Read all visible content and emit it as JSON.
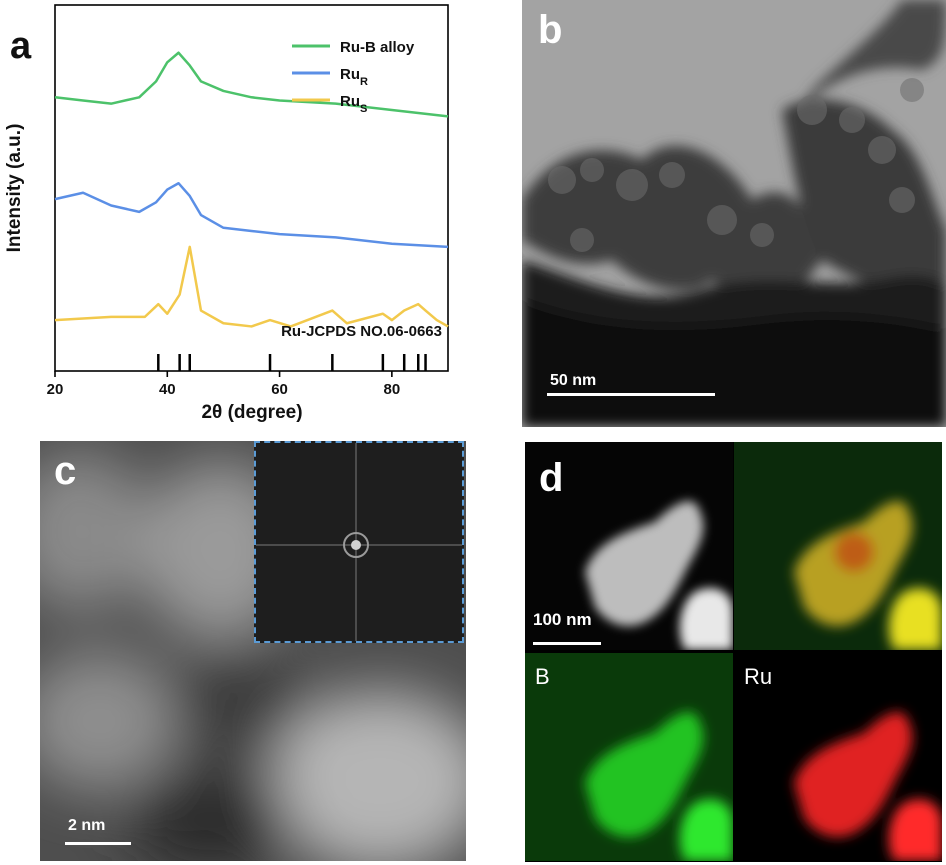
{
  "figure": {
    "panel_a": {
      "label": "a",
      "chart_data": {
        "type": "line",
        "xlabel": "2θ (degree)",
        "ylabel": "Intensity (a.u.)",
        "xlim": [
          20,
          90
        ],
        "xticks": [
          20,
          40,
          60,
          80
        ],
        "yticks_shown": false,
        "legend_position": "top-right",
        "series": [
          {
            "name": "Ru-B alloy",
            "color": "#4cc26a",
            "x": [
              20,
              25,
              30,
              35,
              38,
              40,
              42,
              44,
              46,
              50,
              55,
              60,
              70,
              80,
              90
            ],
            "y": [
              8.6,
              8.5,
              8.4,
              8.6,
              9.1,
              9.7,
              10.0,
              9.6,
              9.1,
              8.8,
              8.6,
              8.5,
              8.4,
              8.2,
              8.0
            ]
          },
          {
            "name": "Ru_R",
            "color": "#5b8fe6",
            "x": [
              20,
              25,
              30,
              35,
              38,
              40,
              42,
              44,
              46,
              50,
              55,
              60,
              70,
              80,
              90
            ],
            "y": [
              5.4,
              5.6,
              5.2,
              5.0,
              5.3,
              5.7,
              5.9,
              5.5,
              4.9,
              4.5,
              4.4,
              4.3,
              4.2,
              4.0,
              3.9
            ]
          },
          {
            "name": "Ru_S",
            "color": "#f2c94c",
            "x": [
              20,
              30,
              36,
              38.4,
              40,
              42.2,
              44.0,
              46,
              50,
              55,
              58.3,
              62,
              69.4,
              72,
              78.4,
              80,
              82.2,
              84.7,
              86,
              88,
              90
            ],
            "y": [
              1.6,
              1.7,
              1.7,
              2.1,
              1.8,
              2.4,
              3.9,
              1.9,
              1.5,
              1.4,
              1.6,
              1.4,
              1.9,
              1.5,
              1.8,
              1.6,
              1.9,
              2.1,
              1.9,
              1.6,
              1.4
            ]
          }
        ],
        "reference": {
          "label": "Ru-JCPDS NO.06-0663",
          "positions": [
            38.4,
            42.2,
            44.0,
            58.3,
            69.4,
            78.4,
            82.2,
            84.7,
            86.0
          ]
        }
      }
    },
    "panel_b": {
      "label": "b",
      "scale_bar": "50 nm"
    },
    "panel_c": {
      "label": "c",
      "scale_bar": "2 nm"
    },
    "panel_d": {
      "label": "d",
      "scale_bar": "100 nm",
      "maps": {
        "boron": "B",
        "ruthenium": "Ru"
      }
    },
    "colors": {
      "inset_border": "#5b9bd5",
      "boron_map": "#22c322",
      "ruthenium_map": "#e02020"
    }
  }
}
